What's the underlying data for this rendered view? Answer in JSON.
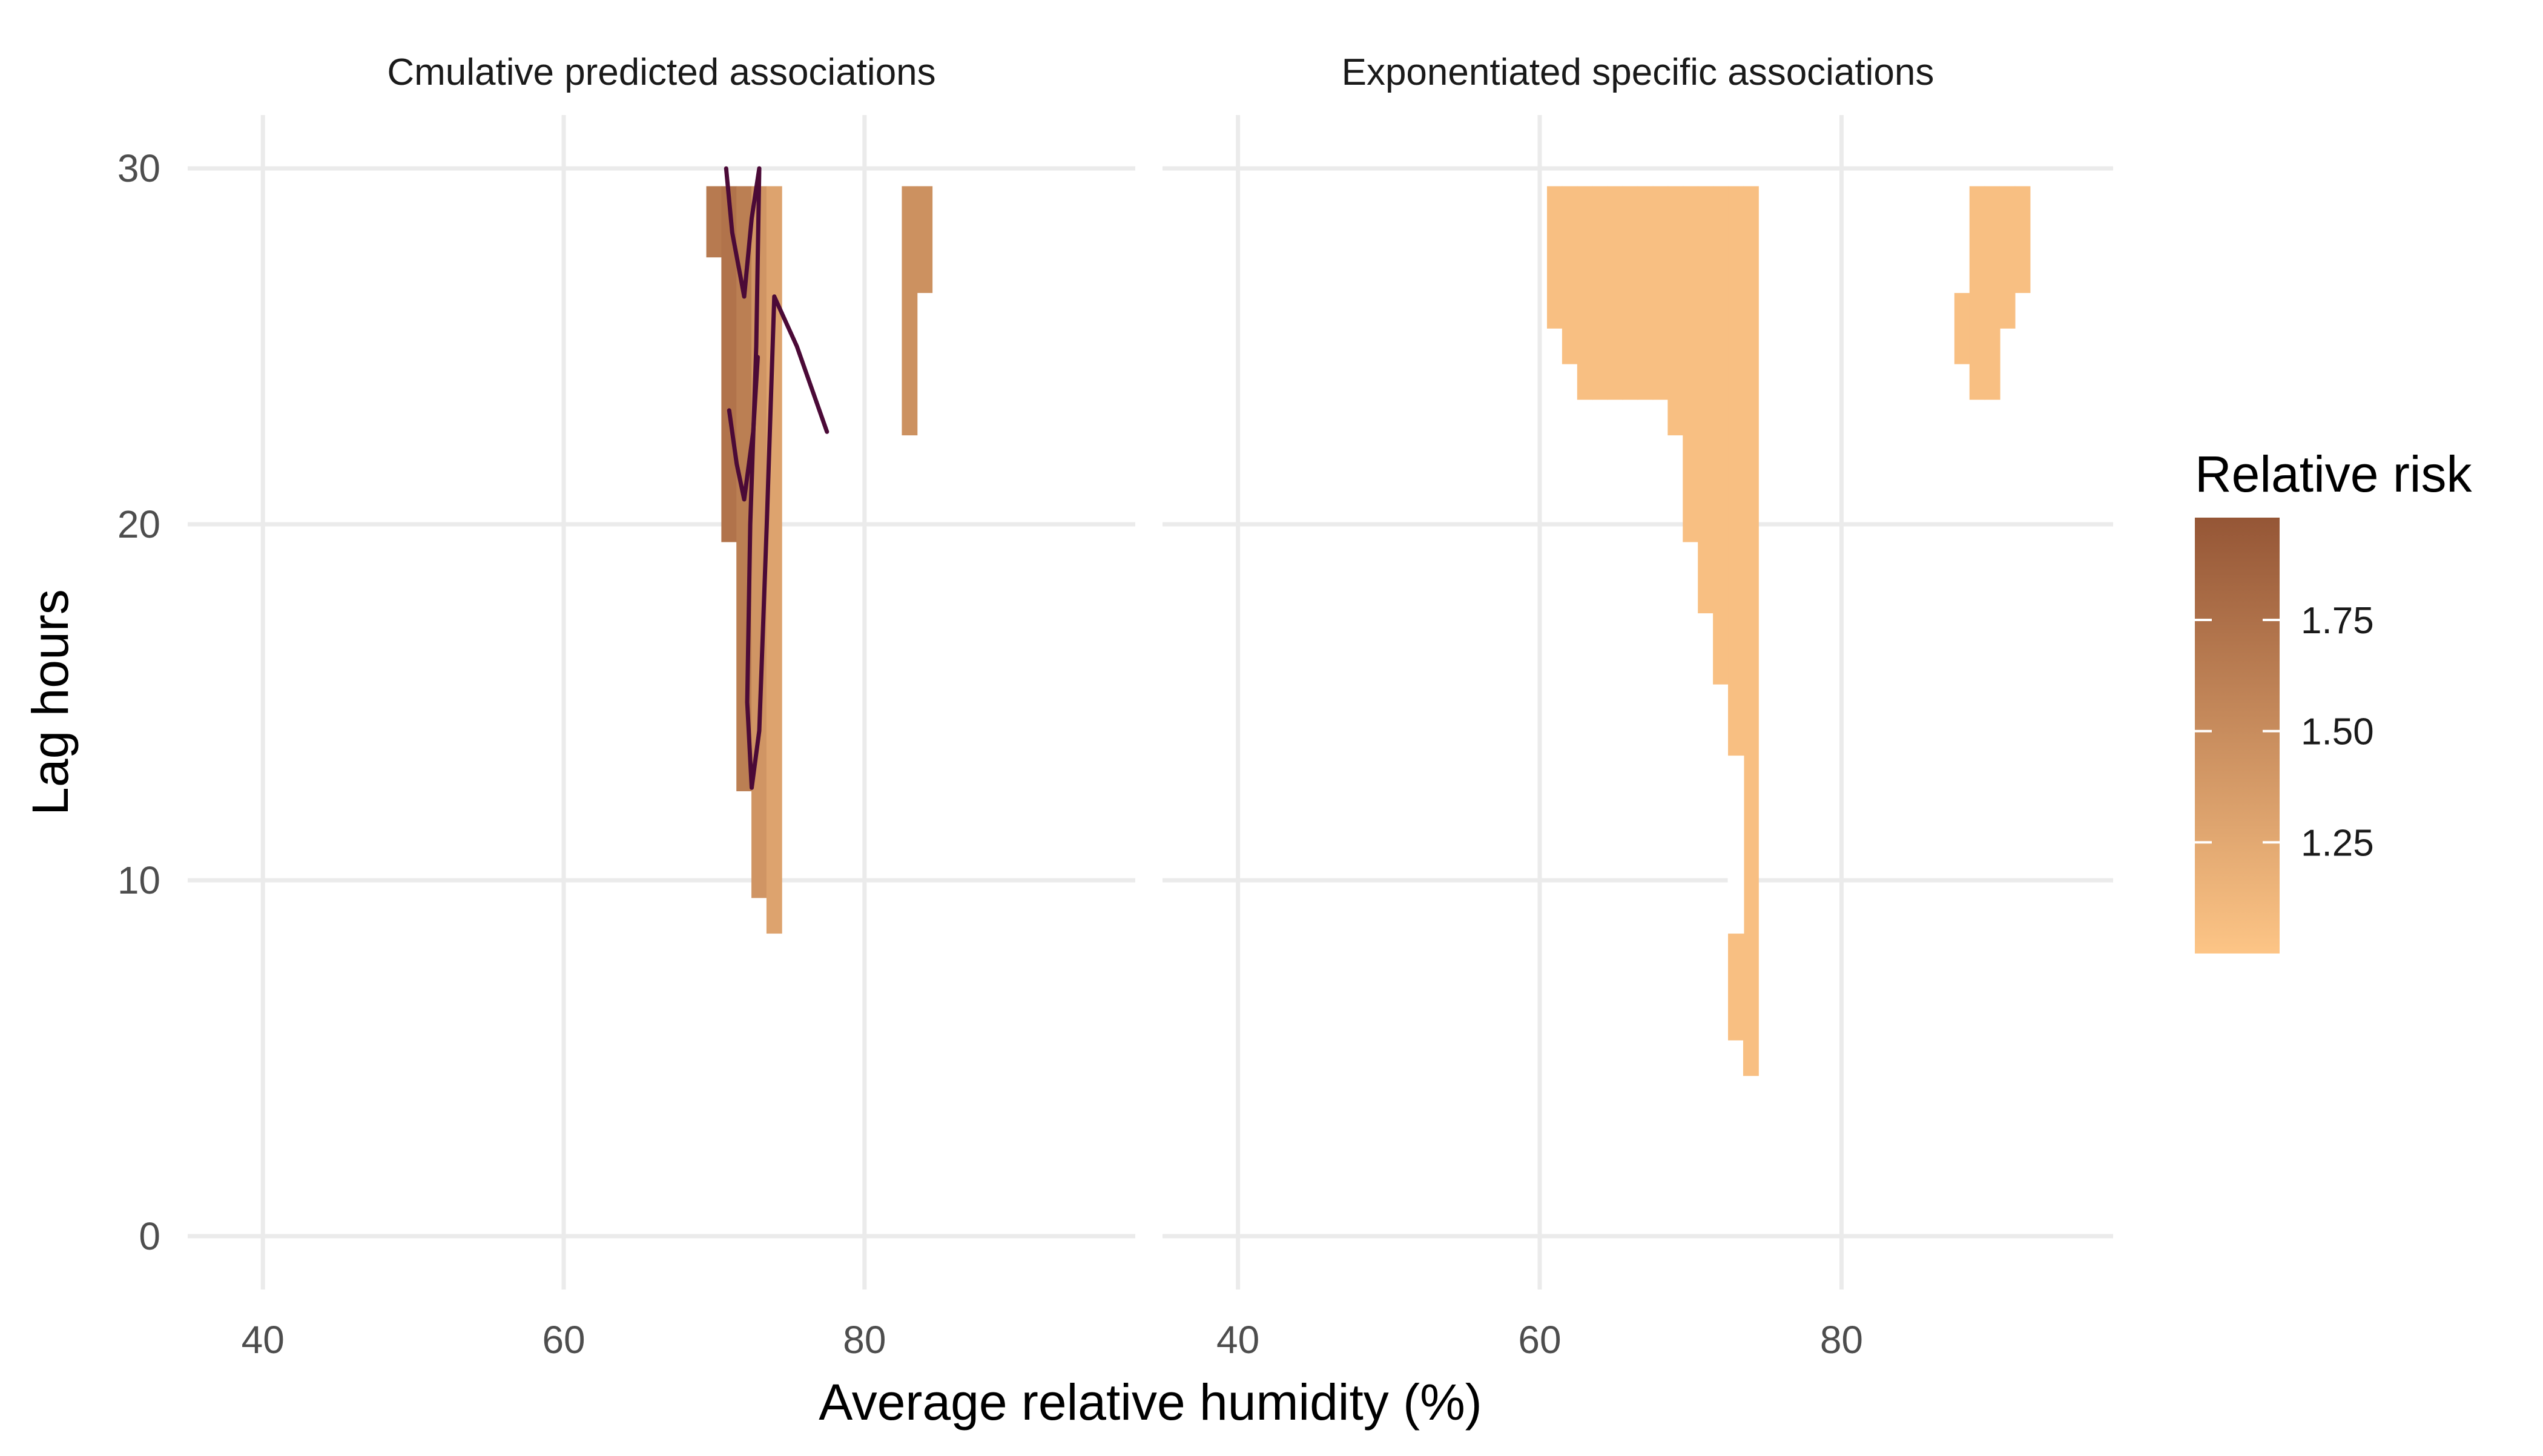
{
  "chart_data": {
    "type": "heatmap",
    "xlabel": "Average relative humidity (%)",
    "ylabel": "Lag hours",
    "xlim": [
      35,
      98
    ],
    "ylim": [
      -1.5,
      31.5
    ],
    "x_ticks": [
      40,
      60,
      80
    ],
    "y_ticks": [
      0,
      10,
      20,
      30
    ],
    "grid": true,
    "legend": {
      "title": "Relative risk",
      "position": "right",
      "min": 1.0,
      "max": 1.98,
      "ticks": [
        1.25,
        1.5,
        1.75
      ],
      "tick_labels": [
        "1.25",
        "1.50",
        "1.75"
      ],
      "color_low": "#fdc586",
      "color_high": "#955636"
    },
    "panels": [
      {
        "title": "Cmulative predicted associations",
        "columns": [
          {
            "x": 70,
            "y0": 27.5,
            "y1": 29.5,
            "rr": 1.66
          },
          {
            "x": 71,
            "y0": 19.5,
            "y1": 29.5,
            "rr": 1.72
          },
          {
            "x": 72,
            "y0": 12.5,
            "y1": 29.5,
            "rr": 1.62
          },
          {
            "x": 73,
            "y0": 9.5,
            "y1": 29.5,
            "rr": 1.42
          },
          {
            "x": 74,
            "y0": 8.5,
            "y1": 29.5,
            "rr": 1.3
          },
          {
            "x": 83,
            "y0": 22.5,
            "y1": 29.5,
            "rr": 1.46
          },
          {
            "x": 84,
            "y0": 26.5,
            "y1": 29.5,
            "rr": 1.46
          }
        ],
        "contours": [
          [
            [
              70.8,
              30.0
            ],
            [
              71.2,
              28.2
            ],
            [
              72.0,
              26.4
            ],
            [
              72.5,
              28.6
            ],
            [
              73.0,
              30.0
            ]
          ],
          [
            [
              73.0,
              30.0
            ],
            [
              72.8,
              25.0
            ],
            [
              72.4,
              20.0
            ],
            [
              72.2,
              15.0
            ],
            [
              72.5,
              12.6
            ]
          ],
          [
            [
              71.0,
              23.2
            ],
            [
              71.5,
              21.7
            ],
            [
              72.0,
              20.7
            ],
            [
              72.6,
              22.6
            ],
            [
              72.9,
              24.7
            ]
          ],
          [
            [
              72.5,
              12.6
            ],
            [
              73.0,
              14.2
            ],
            [
              73.5,
              20.0
            ],
            [
              74.0,
              26.4
            ],
            [
              75.5,
              25.0
            ],
            [
              77.5,
              22.6
            ]
          ]
        ]
      },
      {
        "title": "Exponentiated specific associations",
        "columns": [
          {
            "x": 61,
            "y0": 25.5,
            "y1": 29.5,
            "rr": 1.05
          },
          {
            "x": 62,
            "y0": 24.5,
            "y1": 29.5,
            "rr": 1.05
          },
          {
            "x": 63,
            "y0": 23.5,
            "y1": 29.5,
            "rr": 1.05
          },
          {
            "x": 64,
            "y0": 23.5,
            "y1": 29.5,
            "rr": 1.05
          },
          {
            "x": 65,
            "y0": 23.5,
            "y1": 29.5,
            "rr": 1.05
          },
          {
            "x": 66,
            "y0": 23.5,
            "y1": 29.5,
            "rr": 1.05
          },
          {
            "x": 67,
            "y0": 23.5,
            "y1": 29.5,
            "rr": 1.05
          },
          {
            "x": 68,
            "y0": 23.5,
            "y1": 29.5,
            "rr": 1.05
          },
          {
            "x": 69,
            "y0": 22.5,
            "y1": 29.5,
            "rr": 1.05
          },
          {
            "x": 70,
            "y0": 19.5,
            "y1": 29.5,
            "rr": 1.05
          },
          {
            "x": 71,
            "y0": 17.5,
            "y1": 29.5,
            "rr": 1.05
          },
          {
            "x": 72,
            "y0": 15.5,
            "y1": 29.5,
            "rr": 1.05
          },
          {
            "x": 73,
            "y0": 5.5,
            "y1": 29.5,
            "rr": 1.05
          },
          {
            "x": 74,
            "y0": 4.5,
            "y1": 29.5,
            "rr": 1.05
          },
          {
            "x": 88,
            "y0": 24.5,
            "y1": 26.5,
            "rr": 1.05
          },
          {
            "x": 89,
            "y0": 23.5,
            "y1": 29.5,
            "rr": 1.05
          },
          {
            "x": 90,
            "y0": 23.5,
            "y1": 29.5,
            "rr": 1.05
          },
          {
            "x": 91,
            "y0": 25.5,
            "y1": 29.5,
            "rr": 1.05
          },
          {
            "x": 92,
            "y0": 26.5,
            "y1": 29.5,
            "rr": 1.05
          }
        ],
        "gaps": [
          {
            "x": 73,
            "y0": 8.5,
            "y1": 13.5
          }
        ],
        "contours": []
      }
    ]
  }
}
